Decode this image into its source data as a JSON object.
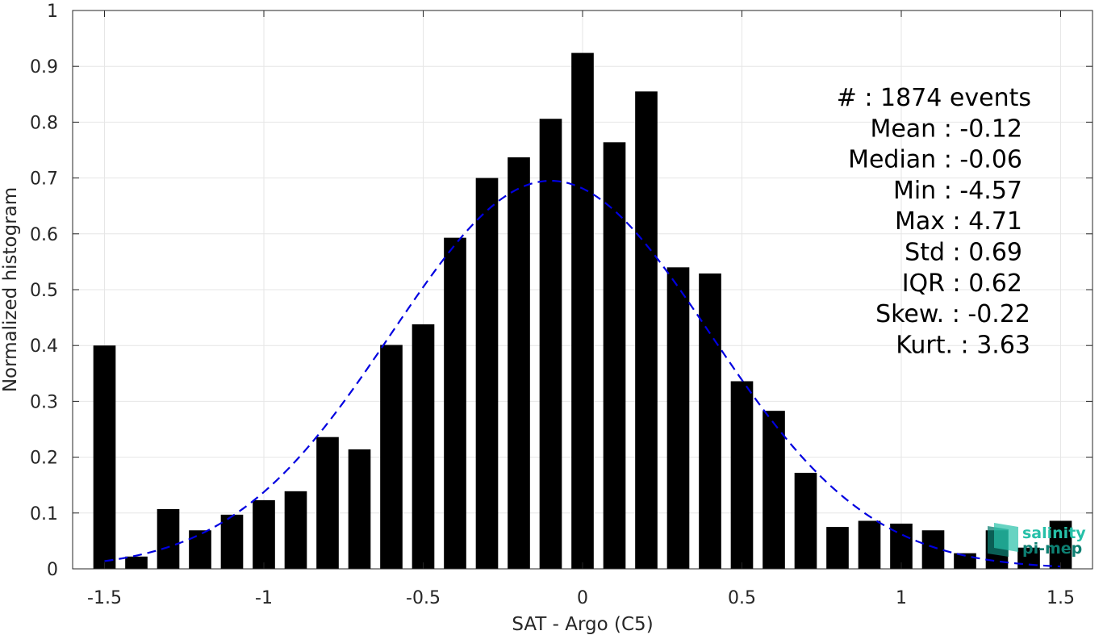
{
  "chart_data": {
    "type": "bar",
    "xlabel": "SAT - Argo (C5)",
    "ylabel": "Normalized histogram",
    "xlim": [
      -1.6,
      1.6
    ],
    "ylim": [
      0,
      1
    ],
    "xticks": [
      -1.5,
      -1,
      -0.5,
      0,
      0.5,
      1,
      1.5
    ],
    "xtick_labels": [
      "-1.5",
      "-1",
      "-0.5",
      "0",
      "0.5",
      "1",
      "1.5"
    ],
    "yticks": [
      0,
      0.1,
      0.2,
      0.3,
      0.4,
      0.5,
      0.6,
      0.7,
      0.8,
      0.9,
      1
    ],
    "ytick_labels": [
      "0",
      "0.1",
      "0.2",
      "0.3",
      "0.4",
      "0.5",
      "0.6",
      "0.7",
      "0.8",
      "0.9",
      "1"
    ],
    "grid": true,
    "bar_color": "#000000",
    "bar_width": 0.07,
    "bars": {
      "x": [
        -1.5,
        -1.4,
        -1.3,
        -1.2,
        -1.1,
        -1.0,
        -0.9,
        -0.8,
        -0.7,
        -0.6,
        -0.5,
        -0.4,
        -0.3,
        -0.2,
        -0.1,
        0.0,
        0.1,
        0.2,
        0.3,
        0.4,
        0.5,
        0.6,
        0.7,
        0.8,
        0.9,
        1.0,
        1.1,
        1.2,
        1.3,
        1.4,
        1.5
      ],
      "values": [
        0.4,
        0.022,
        0.107,
        0.069,
        0.097,
        0.123,
        0.139,
        0.236,
        0.214,
        0.401,
        0.438,
        0.593,
        0.7,
        0.737,
        0.806,
        0.924,
        0.764,
        0.855,
        0.54,
        0.529,
        0.336,
        0.283,
        0.172,
        0.075,
        0.086,
        0.081,
        0.069,
        0.028,
        0.069,
        0.038,
        0.086
      ]
    },
    "fit_curve": {
      "type": "gaussian",
      "color": "#0000e0",
      "dashed": true,
      "peak": 0.695,
      "mean": -0.1,
      "sigma": 0.5,
      "x_range": [
        -1.5,
        1.5
      ]
    },
    "annotation": {
      "lines": [
        "#  : 1874 events",
        "Mean : -0.12",
        "Median : -0.06",
        "Min : -4.57",
        "Max : 4.71",
        "Std : 0.69",
        "IQR : 0.62",
        "Skew. : -0.22",
        "Kurt. : 3.63"
      ]
    }
  },
  "logo": {
    "line1": "salinity",
    "line2": "pi-mep",
    "color_light": "#26c0a8",
    "color_dark": "#0d7f72"
  }
}
